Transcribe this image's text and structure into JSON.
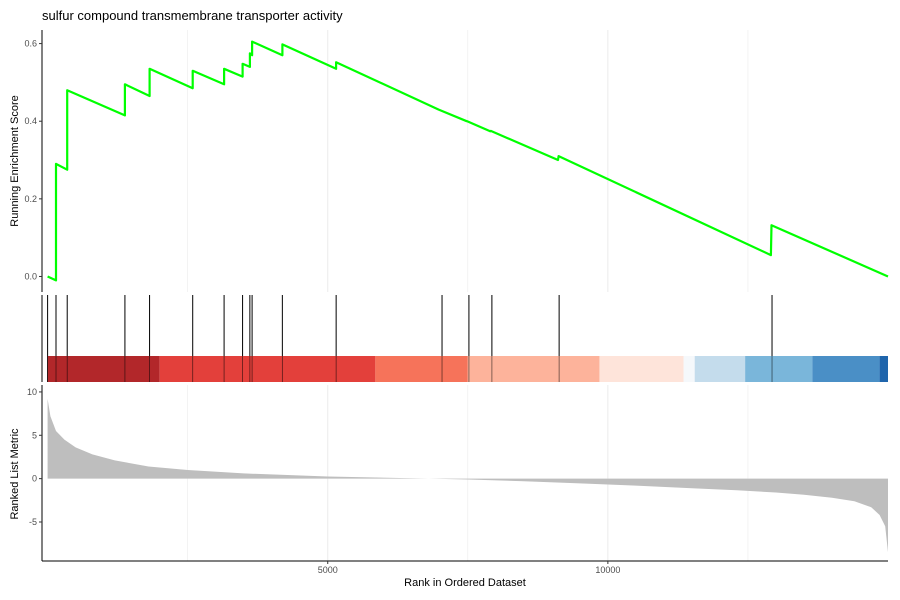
{
  "chart_data": {
    "type": "line",
    "title": "sulfur compound transmembrane transporter activity",
    "n_genes": 14000,
    "x_ticks": [
      5000,
      10000
    ],
    "panels": {
      "enrichment": {
        "ylabel": "Running Enrichment Score",
        "ylim": [
          -0.04,
          0.635
        ],
        "y_ticks": [
          0.0,
          0.2,
          0.4,
          0.6
        ],
        "y_tick_labels": [
          "0.0",
          "0.2",
          "0.4",
          "0.6"
        ],
        "line_color": "#00ff00",
        "series": [
          {
            "x": [
              0,
              150,
              150,
              350,
              350,
              1380,
              1380,
              1820,
              1820,
              2590,
              2590,
              3150,
              3150,
              3480,
              3480,
              3610,
              3610,
              3650,
              3650,
              4190,
              4190,
              5150,
              5150,
              6980,
              7480,
              7490,
              7900,
              7910,
              9110,
              9120,
              12910,
              12920,
              15000
            ],
            "y": [
              0.0,
              -0.01,
              0.29,
              0.275,
              0.48,
              0.415,
              0.495,
              0.465,
              0.535,
              0.485,
              0.53,
              0.495,
              0.535,
              0.515,
              0.548,
              0.54,
              0.575,
              0.57,
              0.605,
              0.57,
              0.598,
              0.535,
              0.552,
              0.43,
              0.4,
              0.4,
              0.374,
              0.375,
              0.3,
              0.31,
              0.055,
              0.132,
              0.0
            ]
          }
        ]
      },
      "hits": {
        "positions": [
          0,
          150,
          350,
          1380,
          1820,
          2590,
          3150,
          3480,
          3610,
          3650,
          4190,
          5150,
          7040,
          7520,
          7930,
          9130,
          12930
        ]
      },
      "ranked_list": {
        "ylabel": "Ranked List Metric",
        "ylim": [
          -9.5,
          10.8
        ],
        "y_ticks": [
          -5,
          0,
          5,
          10
        ],
        "y_tick_labels": [
          "-5",
          "0",
          "5",
          "10"
        ],
        "fill_color": "#bebebe",
        "x": [
          0,
          50,
          150,
          300,
          500,
          800,
          1200,
          1800,
          2500,
          3500,
          5000,
          6500,
          7500,
          8500,
          9500,
          10500,
          11500,
          12300,
          13000,
          13500,
          14000,
          14400,
          14700,
          14850,
          14950,
          15000
        ],
        "y": [
          9.2,
          7.2,
          5.5,
          4.5,
          3.6,
          2.8,
          2.1,
          1.4,
          1.0,
          0.6,
          0.25,
          0.05,
          -0.1,
          -0.3,
          -0.55,
          -0.8,
          -1.1,
          -1.35,
          -1.6,
          -1.85,
          -2.2,
          -2.6,
          -3.3,
          -4.2,
          -5.5,
          -8.5
        ]
      }
    },
    "x_label": "Rank in Ordered Dataset",
    "color_band": [
      {
        "start": 0,
        "end": 2000,
        "color": "#b2272a"
      },
      {
        "start": 2000,
        "end": 5850,
        "color": "#e3403b"
      },
      {
        "start": 5850,
        "end": 7500,
        "color": "#f6735a"
      },
      {
        "start": 7500,
        "end": 9850,
        "color": "#fdb39b"
      },
      {
        "start": 9850,
        "end": 11350,
        "color": "#fee4da"
      },
      {
        "start": 11350,
        "end": 11550,
        "color": "#f5f8fb"
      },
      {
        "start": 11550,
        "end": 12450,
        "color": "#c4dcec"
      },
      {
        "start": 12450,
        "end": 13650,
        "color": "#7ab6da"
      },
      {
        "start": 13650,
        "end": 14850,
        "color": "#4a8fc6"
      },
      {
        "start": 14850,
        "end": 15000,
        "color": "#1f65ac"
      }
    ]
  }
}
